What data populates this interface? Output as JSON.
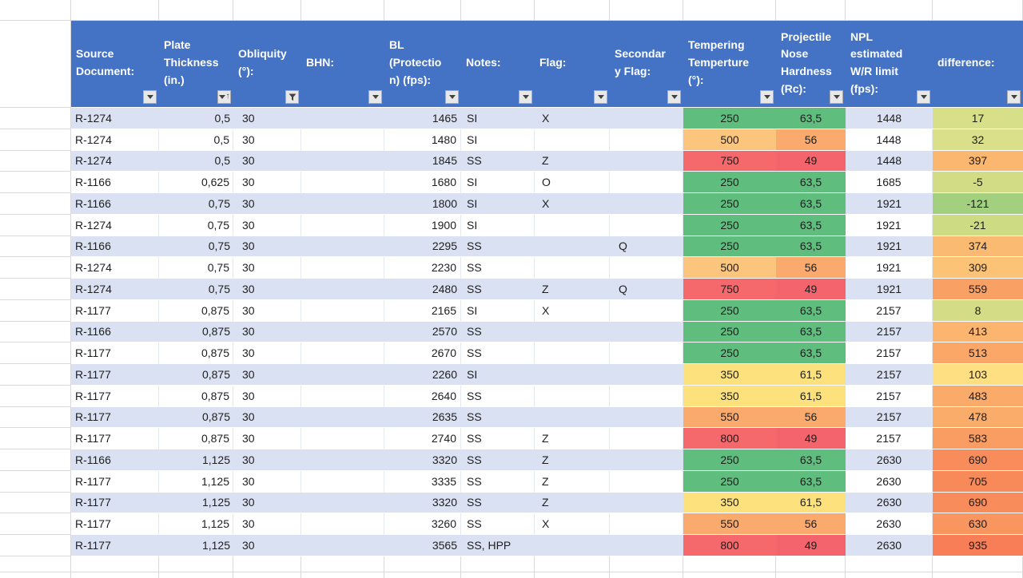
{
  "header": {
    "columns": [
      {
        "id": "source",
        "label": "Source\nDocument:",
        "button": "dropdown"
      },
      {
        "id": "thickness",
        "label": "Plate\nThickness\n(in.)",
        "button": "sort-asc"
      },
      {
        "id": "obliquity",
        "label": "Obliquity\n(°):",
        "button": "filter"
      },
      {
        "id": "bhn",
        "label": "BHN:",
        "button": "dropdown"
      },
      {
        "id": "bl",
        "label": "BL\n(Protectio\nn) (fps):",
        "button": "dropdown"
      },
      {
        "id": "notes",
        "label": "Notes:",
        "button": "dropdown"
      },
      {
        "id": "flag",
        "label": "Flag:",
        "button": "dropdown"
      },
      {
        "id": "secondary",
        "label": "Secondar\ny Flag:",
        "button": "dropdown"
      },
      {
        "id": "tempering",
        "label": "Tempering\nTemperture\n(°):",
        "button": "dropdown"
      },
      {
        "id": "hardness",
        "label": "Projectile\nNose\nHardness\n(Rc):",
        "button": "dropdown"
      },
      {
        "id": "npl",
        "label": "NPL\nestimated\nW/R limit\n(fps):",
        "button": "dropdown"
      },
      {
        "id": "difference",
        "label": "difference:",
        "button": "dropdown"
      }
    ]
  },
  "colors": {
    "header_bg": "#4472C4",
    "band": "#D9E1F2",
    "gridline": "#D9D9D9",
    "green": "#5FBE7D",
    "yellow": "#FCE17D",
    "orange_light": "#FCC57E",
    "orange": "#FAAA6D",
    "red": "#F5686C",
    "red_dark": "#F4646C"
  },
  "rows": [
    {
      "source": "R-1274",
      "thickness": "0,5",
      "obliquity": "30",
      "bhn": "",
      "bl": "1465",
      "notes": "SI",
      "flag": "X",
      "secondary": "",
      "tempering": "250",
      "tempering_color": "green",
      "hardness": "63,5",
      "hardness_color": "green",
      "npl": "1448",
      "difference": "17",
      "difference_color": "#D7DF88"
    },
    {
      "source": "R-1274",
      "thickness": "0,5",
      "obliquity": "30",
      "bhn": "",
      "bl": "1480",
      "notes": "SI",
      "flag": "",
      "secondary": "",
      "tempering": "500",
      "tempering_color": "orange_light",
      "hardness": "56",
      "hardness_color": "orange",
      "npl": "1448",
      "difference": "32",
      "difference_color": "#D9E089"
    },
    {
      "source": "R-1274",
      "thickness": "0,5",
      "obliquity": "30",
      "bhn": "",
      "bl": "1845",
      "notes": "SS",
      "flag": "Z",
      "secondary": "",
      "tempering": "750",
      "tempering_color": "red",
      "hardness": "49",
      "hardness_color": "red_dark",
      "npl": "1448",
      "difference": "397",
      "difference_color": "#FBB76F"
    },
    {
      "source": "R-1166",
      "thickness": "0,625",
      "obliquity": "30",
      "bhn": "",
      "bl": "1680",
      "notes": "SI",
      "flag": "O",
      "secondary": "",
      "tempering": "250",
      "tempering_color": "green",
      "hardness": "63,5",
      "hardness_color": "green",
      "npl": "1685",
      "difference": "-5",
      "difference_color": "#D1DC85"
    },
    {
      "source": "R-1166",
      "thickness": "0,75",
      "obliquity": "30",
      "bhn": "",
      "bl": "1800",
      "notes": "SI",
      "flag": "X",
      "secondary": "",
      "tempering": "250",
      "tempering_color": "green",
      "hardness": "63,5",
      "hardness_color": "green",
      "npl": "1921",
      "difference": "-121",
      "difference_color": "#A3D07E"
    },
    {
      "source": "R-1274",
      "thickness": "0,75",
      "obliquity": "30",
      "bhn": "",
      "bl": "1900",
      "notes": "SI",
      "flag": "",
      "secondary": "",
      "tempering": "250",
      "tempering_color": "green",
      "hardness": "63,5",
      "hardness_color": "green",
      "npl": "1921",
      "difference": "-21",
      "difference_color": "#CDDB83"
    },
    {
      "source": "R-1166",
      "thickness": "0,75",
      "obliquity": "30",
      "bhn": "",
      "bl": "2295",
      "notes": "SS",
      "flag": "",
      "secondary": "Q",
      "tempering": "250",
      "tempering_color": "green",
      "hardness": "63,5",
      "hardness_color": "green",
      "npl": "1921",
      "difference": "374",
      "difference_color": "#FBBA71"
    },
    {
      "source": "R-1274",
      "thickness": "0,75",
      "obliquity": "30",
      "bhn": "",
      "bl": "2230",
      "notes": "SS",
      "flag": "",
      "secondary": "",
      "tempering": "500",
      "tempering_color": "orange_light",
      "hardness": "56",
      "hardness_color": "orange",
      "npl": "1921",
      "difference": "309",
      "difference_color": "#FCC377"
    },
    {
      "source": "R-1274",
      "thickness": "0,75",
      "obliquity": "30",
      "bhn": "",
      "bl": "2480",
      "notes": "SS",
      "flag": "Z",
      "secondary": "Q",
      "tempering": "750",
      "tempering_color": "red",
      "hardness": "49",
      "hardness_color": "red_dark",
      "npl": "1921",
      "difference": "559",
      "difference_color": "#F9A065"
    },
    {
      "source": "R-1177",
      "thickness": "0,875",
      "obliquity": "30",
      "bhn": "",
      "bl": "2165",
      "notes": "SI",
      "flag": "X",
      "secondary": "",
      "tempering": "250",
      "tempering_color": "green",
      "hardness": "63,5",
      "hardness_color": "green",
      "npl": "2157",
      "difference": "8",
      "difference_color": "#D4DD86"
    },
    {
      "source": "R-1166",
      "thickness": "0,875",
      "obliquity": "30",
      "bhn": "",
      "bl": "2570",
      "notes": "SS",
      "flag": "",
      "secondary": "",
      "tempering": "250",
      "tempering_color": "green",
      "hardness": "63,5",
      "hardness_color": "green",
      "npl": "2157",
      "difference": "413",
      "difference_color": "#FBB56E"
    },
    {
      "source": "R-1177",
      "thickness": "0,875",
      "obliquity": "30",
      "bhn": "",
      "bl": "2670",
      "notes": "SS",
      "flag": "",
      "secondary": "",
      "tempering": "250",
      "tempering_color": "green",
      "hardness": "63,5",
      "hardness_color": "green",
      "npl": "2157",
      "difference": "513",
      "difference_color": "#FAA768"
    },
    {
      "source": "R-1177",
      "thickness": "0,875",
      "obliquity": "30",
      "bhn": "",
      "bl": "2260",
      "notes": "SI",
      "flag": "",
      "secondary": "",
      "tempering": "350",
      "tempering_color": "yellow",
      "hardness": "61,5",
      "hardness_color": "yellow",
      "npl": "2157",
      "difference": "103",
      "difference_color": "#FEE083"
    },
    {
      "source": "R-1177",
      "thickness": "0,875",
      "obliquity": "30",
      "bhn": "",
      "bl": "2640",
      "notes": "SS",
      "flag": "",
      "secondary": "",
      "tempering": "350",
      "tempering_color": "yellow",
      "hardness": "61,5",
      "hardness_color": "yellow",
      "npl": "2157",
      "difference": "483",
      "difference_color": "#FAAB6A"
    },
    {
      "source": "R-1177",
      "thickness": "0,875",
      "obliquity": "30",
      "bhn": "",
      "bl": "2635",
      "notes": "SS",
      "flag": "",
      "secondary": "",
      "tempering": "550",
      "tempering_color": "orange",
      "hardness": "56",
      "hardness_color": "orange",
      "npl": "2157",
      "difference": "478",
      "difference_color": "#FAAC6A"
    },
    {
      "source": "R-1177",
      "thickness": "0,875",
      "obliquity": "30",
      "bhn": "",
      "bl": "2740",
      "notes": "SS",
      "flag": "Z",
      "secondary": "",
      "tempering": "800",
      "tempering_color": "red",
      "hardness": "49",
      "hardness_color": "red_dark",
      "npl": "2157",
      "difference": "583",
      "difference_color": "#F99D63"
    },
    {
      "source": "R-1166",
      "thickness": "1,125",
      "obliquity": "30",
      "bhn": "",
      "bl": "3320",
      "notes": "SS",
      "flag": "Z",
      "secondary": "",
      "tempering": "250",
      "tempering_color": "green",
      "hardness": "63,5",
      "hardness_color": "green",
      "npl": "2630",
      "difference": "690",
      "difference_color": "#F88C5B"
    },
    {
      "source": "R-1177",
      "thickness": "1,125",
      "obliquity": "30",
      "bhn": "",
      "bl": "3335",
      "notes": "SS",
      "flag": "Z",
      "secondary": "",
      "tempering": "250",
      "tempering_color": "green",
      "hardness": "63,5",
      "hardness_color": "green",
      "npl": "2630",
      "difference": "705",
      "difference_color": "#F88A5A"
    },
    {
      "source": "R-1177",
      "thickness": "1,125",
      "obliquity": "30",
      "bhn": "",
      "bl": "3320",
      "notes": "SS",
      "flag": "Z",
      "secondary": "",
      "tempering": "350",
      "tempering_color": "yellow",
      "hardness": "61,5",
      "hardness_color": "yellow",
      "npl": "2630",
      "difference": "690",
      "difference_color": "#F88C5B"
    },
    {
      "source": "R-1177",
      "thickness": "1,125",
      "obliquity": "30",
      "bhn": "",
      "bl": "3260",
      "notes": "SS",
      "flag": "X",
      "secondary": "",
      "tempering": "550",
      "tempering_color": "orange",
      "hardness": "56",
      "hardness_color": "orange",
      "npl": "2630",
      "difference": "630",
      "difference_color": "#F9955F"
    },
    {
      "source": "R-1177",
      "thickness": "1,125",
      "obliquity": "30",
      "bhn": "",
      "bl": "3565",
      "notes": "SS, HPP",
      "flag": "",
      "secondary": "",
      "tempering": "800",
      "tempering_color": "red",
      "hardness": "49",
      "hardness_color": "red_dark",
      "npl": "2630",
      "difference": "935",
      "difference_color": "#F77E57"
    }
  ]
}
